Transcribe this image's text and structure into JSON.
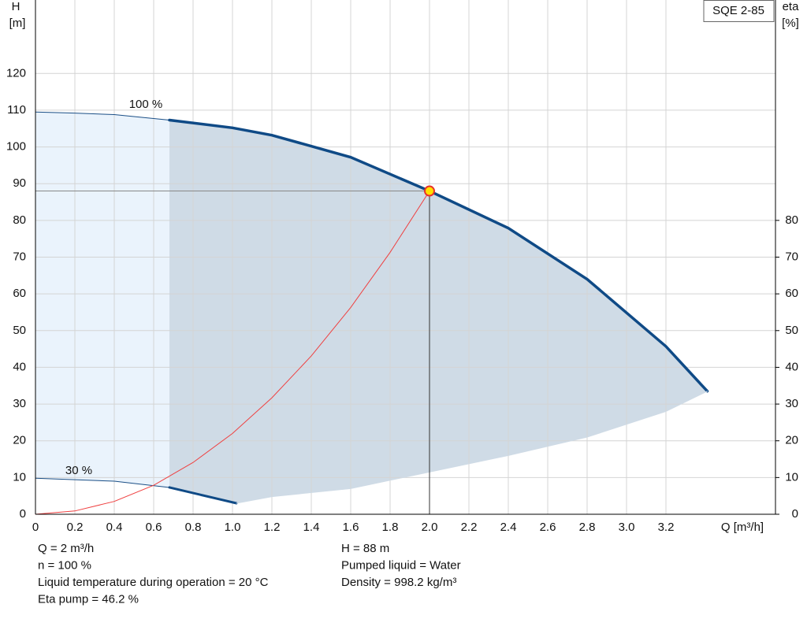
{
  "chart_data": {
    "type": "line",
    "title": "SQE 2-85",
    "y_label_top": "H",
    "y_label_unit": "[m]",
    "y2_label_top": "eta",
    "y2_label_unit": "[%]",
    "x_label": "Q [m³/h]",
    "xlim": [
      0,
      3.756
    ],
    "ylim": [
      0,
      140
    ],
    "y2lim": [
      0,
      140
    ],
    "xticks": [
      0,
      0.2,
      0.4,
      0.6,
      0.8,
      {
        "value": 1.0,
        "label": "1.0"
      },
      1.2,
      1.4,
      1.6,
      1.8,
      {
        "value": 2.0,
        "label": "2.0"
      },
      2.2,
      2.4,
      2.6,
      2.8,
      {
        "value": 3.0,
        "label": "3.0"
      },
      3.2
    ],
    "yticks": [
      0,
      10,
      20,
      30,
      40,
      50,
      60,
      70,
      80,
      90,
      100,
      110,
      120
    ],
    "y2ticks": [
      0,
      10,
      20,
      30,
      40,
      50,
      60,
      70,
      80
    ],
    "grid": true,
    "series": [
      {
        "name": "100 %",
        "color": "#1b4f86",
        "width": 1,
        "x": [
          0,
          0.2,
          0.4,
          0.68
        ],
        "values": [
          109.5,
          109.2,
          108.8,
          107.3
        ]
      },
      {
        "color": "#0f4a86",
        "width": 3.5,
        "x": [
          0.68,
          1.0,
          1.2,
          1.6,
          2.0,
          2.4,
          2.8,
          3.2,
          3.41
        ],
        "values": [
          107.3,
          105.2,
          103.2,
          97.2,
          88,
          77.9,
          64,
          45.7,
          33.5
        ]
      },
      {
        "name": "30 %",
        "color": "#1b4f86",
        "width": 1,
        "x": [
          0,
          0.4,
          0.68
        ],
        "values": [
          9.8,
          9.0,
          7.3
        ]
      },
      {
        "color": "#0f4a86",
        "width": 3,
        "x": [
          0.68,
          1.02
        ],
        "values": [
          7.3,
          3.0
        ]
      },
      {
        "color": "#ef4040",
        "width": 1,
        "x": [
          0,
          0.2,
          0.4,
          0.6,
          0.8,
          1.0,
          1.2,
          1.4,
          1.6,
          1.8,
          2.0
        ],
        "values": [
          0,
          0.9,
          3.5,
          7.9,
          14.1,
          22,
          31.7,
          43.1,
          56.3,
          71.3,
          88
        ]
      },
      {
        "color": "#cfdbe6",
        "width": 1,
        "x": [
          1.02,
          1.2,
          1.6,
          2.0,
          2.4,
          2.8,
          3.2,
          3.41
        ],
        "values": [
          3,
          4.8,
          7,
          11.5,
          16,
          21,
          28,
          33.5
        ]
      }
    ],
    "duty_point": {
      "x": 2,
      "value": 88
    },
    "info_left": [
      "Q = 2 m³/h",
      "n = 100 %",
      "Liquid temperature during operation = 20 °C",
      "Eta pump = 46.2 %"
    ],
    "info_right": [
      "H = 88 m",
      "Pumped liquid = Water",
      "Density = 998.2 kg/m³"
    ]
  }
}
